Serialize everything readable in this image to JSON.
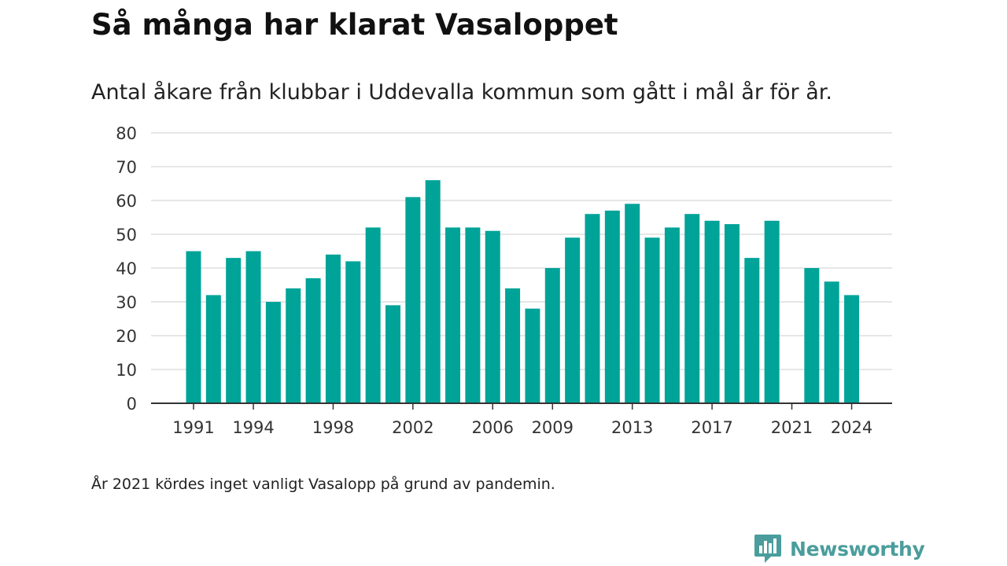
{
  "header": {
    "title": "Så många har klarat Vasaloppet",
    "subtitle": "Antal åkare från klubbar i Uddevalla kommun som gått i mål år för år."
  },
  "footer": {
    "note": "År 2021 kördes inget vanligt Vasalopp på grund av pandemin.",
    "brand": "Newsworthy"
  },
  "colors": {
    "bar": "#00a398",
    "grid": "#dddddd",
    "axis": "#333333",
    "brand": "#4a9d9c"
  },
  "chart_data": {
    "type": "bar",
    "categories": [
      "1991",
      "1992",
      "1993",
      "1994",
      "1995",
      "1996",
      "1997",
      "1998",
      "1999",
      "2000",
      "2001",
      "2002",
      "2003",
      "2004",
      "2005",
      "2006",
      "2007",
      "2008",
      "2009",
      "2010",
      "2011",
      "2012",
      "2013",
      "2014",
      "2015",
      "2016",
      "2017",
      "2018",
      "2019",
      "2020",
      "2021",
      "2022",
      "2023",
      "2024"
    ],
    "values": [
      45,
      32,
      43,
      45,
      30,
      34,
      37,
      44,
      42,
      52,
      29,
      61,
      66,
      52,
      52,
      51,
      34,
      28,
      40,
      49,
      56,
      57,
      59,
      49,
      52,
      56,
      54,
      53,
      43,
      54,
      null,
      40,
      36,
      32
    ],
    "x_tick_labels": [
      "1991",
      "1994",
      "1998",
      "2002",
      "2006",
      "2009",
      "2013",
      "2017",
      "2021",
      "2024"
    ],
    "y_ticks": [
      0,
      10,
      20,
      30,
      40,
      50,
      60,
      70,
      80
    ],
    "ylim": [
      0,
      80
    ],
    "grid": true,
    "title": "Så många har klarat Vasaloppet",
    "xlabel": "",
    "ylabel": ""
  }
}
